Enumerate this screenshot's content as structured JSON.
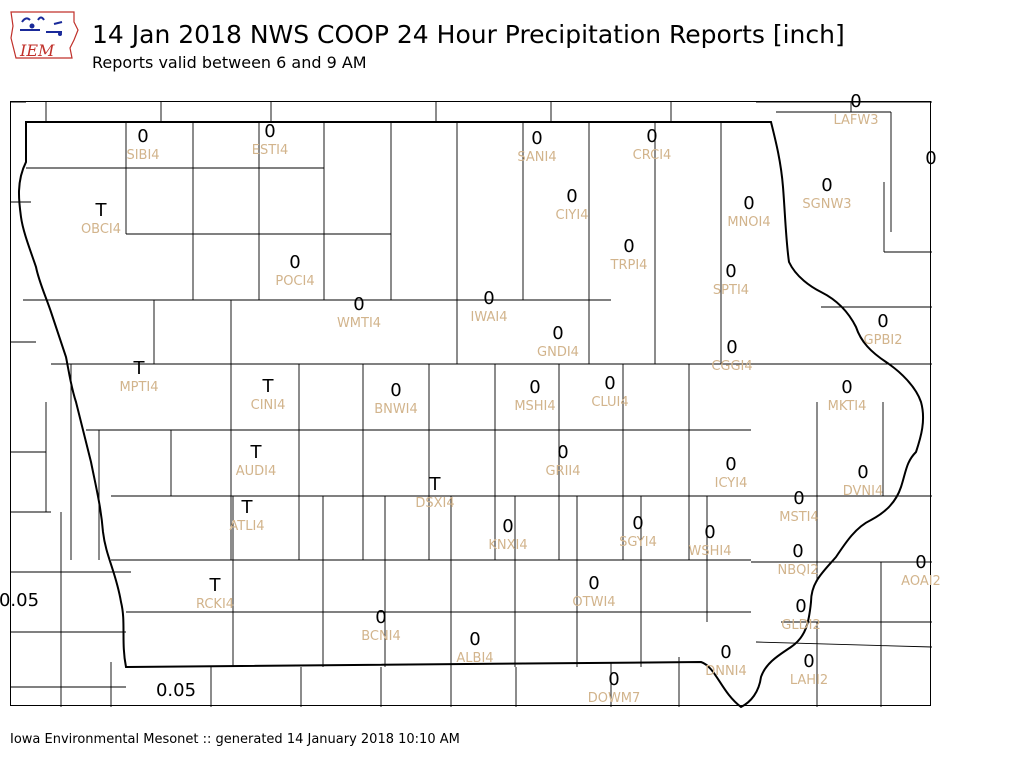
{
  "header": {
    "logo_text": "IEM",
    "title": "14 Jan 2018 NWS COOP 24 Hour Precipitation Reports [inch]",
    "subtitle": "Reports valid between 6 and 9 AM"
  },
  "footer": {
    "text": "Iowa Environmental Mesonet :: generated 14 January 2018 10:10 AM"
  },
  "colors": {
    "station_label": "#d2b48c",
    "value": "#000000",
    "border": "#000000",
    "logo_red": "#c0302a",
    "logo_blue": "#1a2a9a"
  },
  "map": {
    "stations": [
      {
        "id": "SIBI4",
        "value": "0"
      },
      {
        "id": "ESTI4",
        "value": "0"
      },
      {
        "id": "SANI4",
        "value": "0"
      },
      {
        "id": "CRCI4",
        "value": "0"
      },
      {
        "id": "LAFW3",
        "value": "0"
      },
      {
        "id": "OBCI4",
        "value": "T"
      },
      {
        "id": "CIYI4",
        "value": "0"
      },
      {
        "id": "MNOI4",
        "value": "0"
      },
      {
        "id": "SGNW3",
        "value": "0"
      },
      {
        "id": "POCI4",
        "value": "0"
      },
      {
        "id": "TRPI4",
        "value": "0"
      },
      {
        "id": "SPTI4",
        "value": "0"
      },
      {
        "id": "WMTI4",
        "value": "0"
      },
      {
        "id": "IWAI4",
        "value": "0"
      },
      {
        "id": "GNDI4",
        "value": "0"
      },
      {
        "id": "CGGI4",
        "value": "0"
      },
      {
        "id": "GPBI2",
        "value": "0"
      },
      {
        "id": "MPTI4",
        "value": "T"
      },
      {
        "id": "CINI4",
        "value": "T"
      },
      {
        "id": "BNWI4",
        "value": "0"
      },
      {
        "id": "MSHI4",
        "value": "0"
      },
      {
        "id": "CLUI4",
        "value": "0"
      },
      {
        "id": "MKTI4",
        "value": "0"
      },
      {
        "id": "AUDI4",
        "value": "T"
      },
      {
        "id": "GRII4",
        "value": "0"
      },
      {
        "id": "ICYI4",
        "value": "0"
      },
      {
        "id": "DVNI4",
        "value": "0"
      },
      {
        "id": "DSXI4",
        "value": "T"
      },
      {
        "id": "ATLI4",
        "value": "T"
      },
      {
        "id": "MSTI4",
        "value": "0"
      },
      {
        "id": "KNXI4",
        "value": "0"
      },
      {
        "id": "SGYI4",
        "value": "0"
      },
      {
        "id": "WSHI4",
        "value": "0"
      },
      {
        "id": "NBQI2",
        "value": "0"
      },
      {
        "id": "AOAI2",
        "value": "0"
      },
      {
        "id": "RCKI4",
        "value": "T"
      },
      {
        "id": "OTWI4",
        "value": "0"
      },
      {
        "id": "BCNI4",
        "value": "0"
      },
      {
        "id": "GLDI2",
        "value": "0"
      },
      {
        "id": "ALBI4",
        "value": "0"
      },
      {
        "id": "DNNI4",
        "value": "0"
      },
      {
        "id": "LAHI2",
        "value": "0"
      },
      {
        "id": "DOWM7",
        "value": "0"
      }
    ],
    "extra_values": [
      {
        "id": "edge-top-right",
        "value": "0"
      },
      {
        "id": "edge-west",
        "value": "0.05"
      },
      {
        "id": "edge-south",
        "value": "0.05"
      }
    ]
  }
}
